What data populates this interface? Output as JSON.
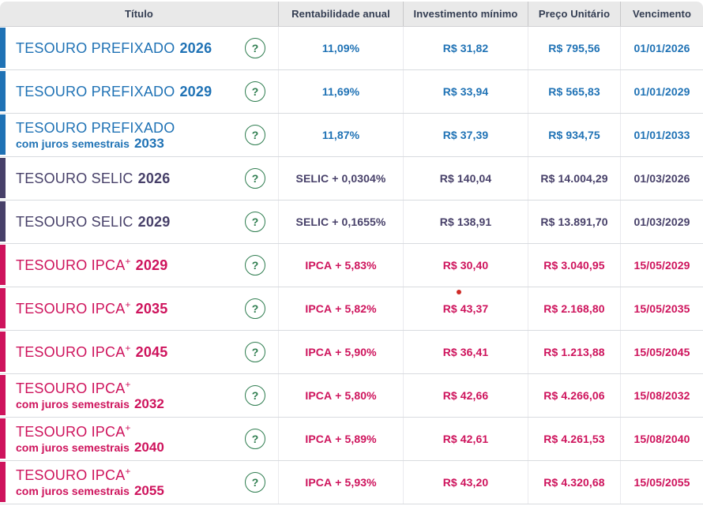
{
  "table": {
    "columns": [
      {
        "label": "Título"
      },
      {
        "label": "Rentabilidade anual"
      },
      {
        "label": "Investimento mínimo"
      },
      {
        "label": "Preço Unitário"
      },
      {
        "label": "Vencimento"
      }
    ],
    "help_icon": "?",
    "colors": {
      "blue": "#1f72b5",
      "purple": "#474069",
      "pink": "#ce135c",
      "header_bg": "#e9e9e9",
      "header_text": "#333d52",
      "help_green": "#2e7d4f",
      "cursor_dot": "#cf2b27"
    },
    "rows": [
      {
        "theme": "blue",
        "name": "TESOURO PREFIXADO",
        "sup": "",
        "subtitle": "",
        "year": "2026",
        "rate_prefix": "",
        "rate": "11,09%",
        "min_investment": "R$ 31,82",
        "unit_price": "R$ 795,56",
        "maturity": "01/01/2026"
      },
      {
        "theme": "blue",
        "name": "TESOURO PREFIXADO",
        "sup": "",
        "subtitle": "",
        "year": "2029",
        "rate_prefix": "",
        "rate": "11,69%",
        "min_investment": "R$ 33,94",
        "unit_price": "R$ 565,83",
        "maturity": "01/01/2029"
      },
      {
        "theme": "blue",
        "name": "TESOURO PREFIXADO",
        "sup": "",
        "subtitle": "com juros semestrais",
        "year": "2033",
        "rate_prefix": "",
        "rate": "11,87%",
        "min_investment": "R$ 37,39",
        "unit_price": "R$ 934,75",
        "maturity": "01/01/2033"
      },
      {
        "theme": "purple",
        "name": "TESOURO SELIC",
        "sup": "",
        "subtitle": "",
        "year": "2026",
        "rate_prefix": "SELIC",
        "rate": "+ 0,0304%",
        "min_investment": "R$ 140,04",
        "unit_price": "R$ 14.004,29",
        "maturity": "01/03/2026"
      },
      {
        "theme": "purple",
        "name": "TESOURO SELIC",
        "sup": "",
        "subtitle": "",
        "year": "2029",
        "rate_prefix": "SELIC",
        "rate": "+ 0,1655%",
        "min_investment": "R$ 138,91",
        "unit_price": "R$ 13.891,70",
        "maturity": "01/03/2029"
      },
      {
        "theme": "pink",
        "name": "TESOURO IPCA",
        "sup": "+",
        "subtitle": "",
        "year": "2029",
        "rate_prefix": "IPCA",
        "rate": "+ 5,83%",
        "min_investment": "R$ 30,40",
        "unit_price": "R$ 3.040,95",
        "maturity": "15/05/2029"
      },
      {
        "theme": "pink",
        "name": "TESOURO IPCA",
        "sup": "+",
        "subtitle": "",
        "year": "2035",
        "rate_prefix": "IPCA",
        "rate": "+ 5,82%",
        "min_investment": "R$ 43,37",
        "unit_price": "R$ 2.168,80",
        "maturity": "15/05/2035"
      },
      {
        "theme": "pink",
        "name": "TESOURO IPCA",
        "sup": "+",
        "subtitle": "",
        "year": "2045",
        "rate_prefix": "IPCA",
        "rate": "+ 5,90%",
        "min_investment": "R$ 36,41",
        "unit_price": "R$ 1.213,88",
        "maturity": "15/05/2045"
      },
      {
        "theme": "pink",
        "name": "TESOURO IPCA",
        "sup": "+",
        "subtitle": "com juros semestrais",
        "year": "2032",
        "rate_prefix": "IPCA",
        "rate": "+ 5,80%",
        "min_investment": "R$ 42,66",
        "unit_price": "R$ 4.266,06",
        "maturity": "15/08/2032"
      },
      {
        "theme": "pink",
        "name": "TESOURO IPCA",
        "sup": "+",
        "subtitle": "com juros semestrais",
        "year": "2040",
        "rate_prefix": "IPCA",
        "rate": "+ 5,89%",
        "min_investment": "R$ 42,61",
        "unit_price": "R$ 4.261,53",
        "maturity": "15/08/2040"
      },
      {
        "theme": "pink",
        "name": "TESOURO IPCA",
        "sup": "+",
        "subtitle": "com juros semestrais",
        "year": "2055",
        "rate_prefix": "IPCA",
        "rate": "+ 5,93%",
        "min_investment": "R$ 43,20",
        "unit_price": "R$ 4.320,68",
        "maturity": "15/05/2055"
      }
    ]
  }
}
